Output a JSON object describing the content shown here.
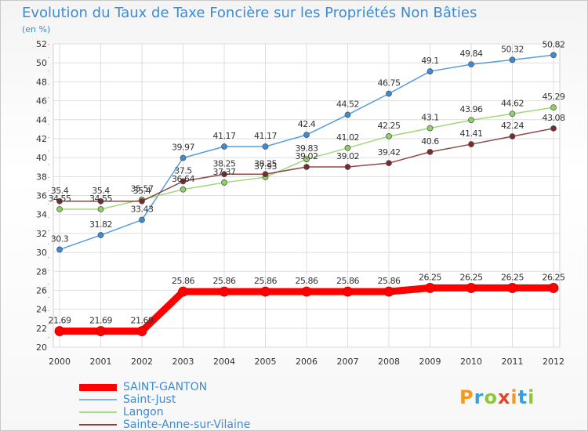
{
  "header": {
    "title": "Evolution du Taux de Taxe Foncière sur les Propriétés Non Bâties",
    "subtitle": "(en %)"
  },
  "brand": {
    "text": "Proxiti",
    "letters": [
      {
        "ch": "P",
        "color": "#f29a1f"
      },
      {
        "ch": "r",
        "color": "#3aa0dc"
      },
      {
        "ch": "o",
        "color": "#8cc63f"
      },
      {
        "ch": "x",
        "color": "#e2452f"
      },
      {
        "ch": "i",
        "color": "#f29a1f"
      },
      {
        "ch": "t",
        "color": "#3aa0dc"
      },
      {
        "ch": "i",
        "color": "#8cc63f"
      }
    ]
  },
  "chart_data": {
    "type": "line",
    "title": "Evolution du Taux de Taxe Foncière sur les Propriétés Non Bâties",
    "ylabel": "(en %)",
    "x": [
      "2000",
      "2001",
      "2002",
      "2003",
      "2004",
      "2005",
      "2006",
      "2007",
      "2008",
      "2009",
      "2010",
      "2011",
      "2012"
    ],
    "ylim": [
      20,
      52
    ],
    "yticks": [
      20,
      22,
      24,
      26,
      28,
      30,
      32,
      34,
      36,
      38,
      40,
      42,
      44,
      46,
      48,
      50,
      52
    ],
    "grid": true,
    "legend_position": "bottom-left",
    "series": [
      {
        "name": "SAINT-GANTON",
        "color": "#ff0000",
        "values": [
          21.69,
          21.69,
          21.69,
          25.86,
          25.86,
          25.86,
          25.86,
          25.86,
          25.86,
          26.25,
          26.25,
          26.25,
          26.25
        ],
        "labels": [
          "21.69",
          "21.69",
          "21.69",
          "25.86",
          "25.86",
          "25.86",
          "25.86",
          "25.86",
          "25.86",
          "26.25",
          "26.25",
          "26.25",
          "26.25"
        ]
      },
      {
        "name": "Saint-Just",
        "color": "#3c8bd6",
        "values": [
          30.3,
          31.82,
          33.43,
          39.97,
          41.17,
          41.17,
          42.4,
          44.52,
          46.75,
          49.1,
          49.84,
          50.32,
          50.82
        ],
        "labels": [
          "30.3",
          "31.82",
          "33.43",
          "39.97",
          "41.17",
          "41.17",
          "42.4",
          "44.52",
          "46.75",
          "49.1",
          "49.84",
          "50.32",
          "50.82"
        ]
      },
      {
        "name": "Langon",
        "color": "#8fd163",
        "values": [
          34.55,
          34.55,
          35.57,
          36.64,
          37.37,
          37.93,
          39.83,
          41.02,
          42.25,
          43.1,
          43.96,
          44.62,
          45.29
        ],
        "labels": [
          "34.55",
          "34.55",
          "35.57",
          "36.64",
          "37.37",
          "37.93",
          "39.83",
          "41.02",
          "42.25",
          "43.1",
          "43.96",
          "44.62",
          "45.29"
        ]
      },
      {
        "name": "Sainte-Anne-sur-Vilaine",
        "color": "#7a2a2a",
        "values": [
          35.4,
          35.4,
          35.4,
          37.5,
          38.25,
          38.25,
          39.02,
          39.02,
          39.42,
          40.6,
          41.41,
          42.24,
          43.08
        ],
        "labels": [
          "35.4",
          "35.4",
          "35.4",
          "37.5",
          "38.25",
          "38.25",
          "39.02",
          "39.02",
          "39.42",
          "40.6",
          "41.41",
          "42.24",
          "43.08"
        ]
      }
    ]
  }
}
